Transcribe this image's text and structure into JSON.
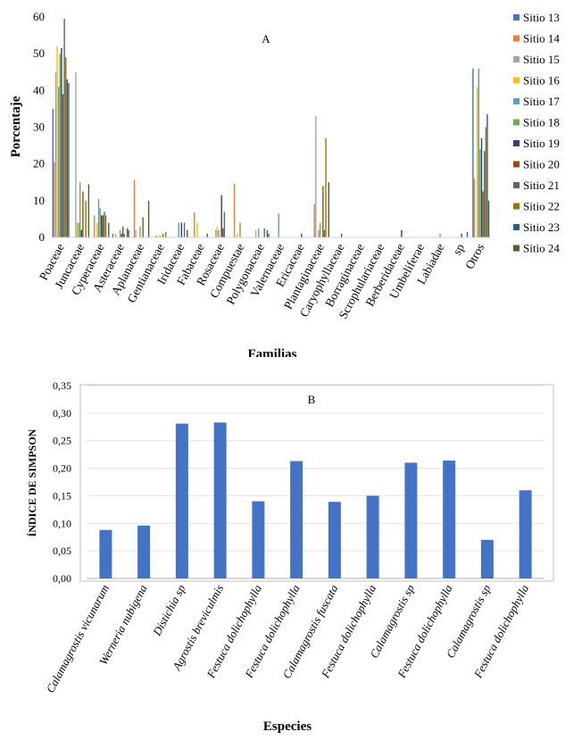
{
  "chart_data": [
    {
      "type": "bar",
      "panel_label": "A",
      "xlabel": "Familias",
      "ylabel": "Porcentaje",
      "ylim": [
        0,
        60
      ],
      "yticks": [
        0,
        10,
        20,
        30,
        40,
        50,
        60
      ],
      "grid": false,
      "legend_position": "right",
      "categories": [
        "Poaceae",
        "Juncaceae",
        "Cyperaceae",
        "Asteraceae",
        "Aplanaceae",
        "Gentianaceae",
        "Iridaceae",
        "Fabaceae",
        "Rosaceae",
        "Compuestae",
        "Polygonaceae",
        "Valernaceae",
        "Ericaceae",
        "Plantaginaceae",
        "Caryophyllaceae",
        "Borraginaceae",
        "Scrophulariaceae",
        "Berberidaceae",
        "Umbeliferae",
        "Labiadae",
        "sp",
        "Otros"
      ],
      "series": [
        {
          "name": "Sitio 13",
          "color": "#4472C4",
          "values": [
            35,
            0,
            0,
            1,
            0,
            0,
            0,
            0,
            0,
            0,
            0,
            0,
            0,
            0,
            0,
            0,
            0,
            0,
            0,
            0,
            0,
            46
          ]
        },
        {
          "name": "Sitio 14",
          "color": "#ED7D31",
          "values": [
            20.5,
            0,
            6,
            0,
            15.7,
            0,
            0,
            6.8,
            0,
            14.7,
            0,
            0,
            0,
            9,
            0,
            0,
            0,
            0,
            0,
            0,
            0,
            16
          ]
        },
        {
          "name": "Sitio 15",
          "color": "#A5A5A5",
          "values": [
            45,
            45,
            0,
            1,
            2,
            0.5,
            0,
            0,
            2,
            0,
            2,
            0,
            0,
            33,
            0,
            0,
            0,
            0,
            0,
            0,
            0,
            0
          ]
        },
        {
          "name": "Sitio 16",
          "color": "#FFC000",
          "values": [
            52,
            4,
            4,
            0,
            0,
            0.5,
            0,
            4,
            3,
            1,
            0,
            0,
            0,
            0,
            0,
            0,
            0,
            0,
            0,
            0,
            0,
            41
          ]
        },
        {
          "name": "Sitio 17",
          "color": "#5B9BD5",
          "values": [
            41,
            4,
            10.5,
            0,
            0,
            0,
            4,
            0,
            2,
            0,
            2.5,
            6.5,
            0,
            2,
            0,
            0,
            0,
            0,
            0,
            0,
            0,
            46
          ]
        },
        {
          "name": "Sitio 18",
          "color": "#70AD47",
          "values": [
            50,
            15,
            8,
            2,
            3,
            0.5,
            0,
            0,
            0,
            4,
            0,
            0,
            0,
            4,
            0,
            0,
            0,
            0,
            0,
            1,
            0,
            24
          ]
        },
        {
          "name": "Sitio 19",
          "color": "#264478",
          "values": [
            51.5,
            2,
            6,
            1,
            0,
            0,
            4,
            0,
            11.5,
            0,
            0,
            0,
            1,
            0,
            1,
            0,
            0,
            2,
            0,
            0,
            1,
            27
          ]
        },
        {
          "name": "Sitio 20",
          "color": "#9E480E",
          "values": [
            39,
            12.5,
            6,
            3,
            5.5,
            1,
            0,
            0,
            2.5,
            0,
            0,
            0,
            0,
            14,
            0,
            0,
            0,
            0,
            0,
            0,
            0,
            12.5
          ]
        },
        {
          "name": "Sitio 21",
          "color": "#636363",
          "values": [
            59.5,
            0,
            7,
            1,
            0,
            0,
            4,
            0,
            7,
            0,
            2.5,
            0,
            0,
            2,
            0,
            0,
            0,
            0,
            0,
            0,
            0,
            23.5
          ]
        },
        {
          "name": "Sitio 22",
          "color": "#997300",
          "values": [
            49,
            10,
            6,
            0,
            0,
            1.5,
            0,
            0,
            0,
            0,
            0,
            0,
            0,
            27,
            0,
            0,
            0,
            0,
            0,
            0,
            0,
            30
          ]
        },
        {
          "name": "Sitio 23",
          "color": "#255E91",
          "values": [
            43,
            0,
            0,
            2.5,
            0,
            0,
            2,
            1,
            0,
            0,
            2,
            0,
            0,
            0,
            0,
            0,
            0,
            0,
            0,
            0,
            1.5,
            33.5
          ]
        },
        {
          "name": "Sitio 24",
          "color": "#43682B",
          "values": [
            42,
            14.5,
            4,
            2,
            10,
            0,
            0,
            0,
            0,
            0,
            1,
            0,
            0,
            15,
            0,
            0,
            0,
            0,
            0,
            0,
            0,
            10
          ]
        }
      ]
    },
    {
      "type": "bar",
      "panel_label": "B",
      "xlabel": "Especies",
      "ylabel": "ÍNDICE DE SIMPSON",
      "ylim": [
        0,
        0.35
      ],
      "yticks": [
        "0,00",
        "0,05",
        "0,10",
        "0,15",
        "0,20",
        "0,25",
        "0,30",
        "0,35"
      ],
      "grid": true,
      "bar_color": "#4472C4",
      "categories": [
        "Calamagrostis vicunarum",
        "Werneria nubigena",
        "Distichia sp",
        "Agrostis breviculmis",
        "Festuca dolichophylla",
        "Festuca dolichophylla",
        "Calamagrostis fuscata",
        "Festuca dolichophylla",
        "Calamagrostis sp",
        "Festuca dolichophylla",
        "Calamagrostis sp",
        "Festuca dolichophylla"
      ],
      "values": [
        0.088,
        0.096,
        0.281,
        0.283,
        0.14,
        0.213,
        0.139,
        0.15,
        0.21,
        0.214,
        0.07,
        0.16
      ]
    }
  ]
}
